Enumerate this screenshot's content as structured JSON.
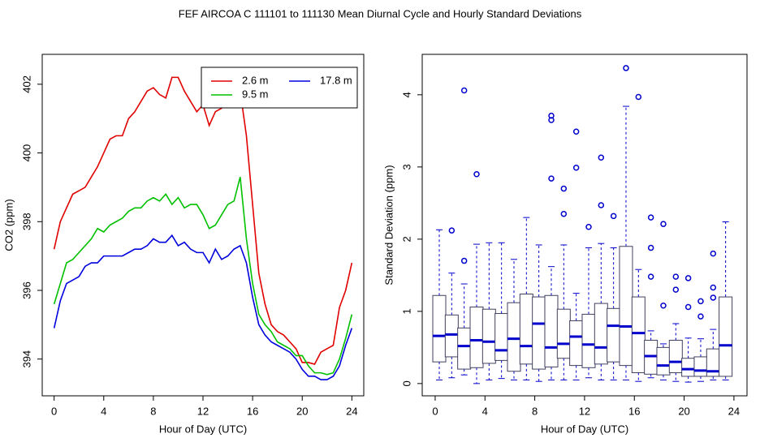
{
  "title": "FEF   AIRCOA C   111101 to 111130   Mean Diurnal Cycle and Hourly Standard Deviations",
  "chart_data": [
    {
      "type": "line",
      "xlabel": "Hour of Day (UTC)",
      "ylabel": "CO2 (ppm)",
      "xlim": [
        -0.96,
        24.96
      ],
      "ylim": [
        392.93,
        402.87
      ],
      "xticks": [
        0,
        4,
        8,
        12,
        16,
        20,
        24
      ],
      "yticks": [
        394,
        396,
        398,
        400,
        402
      ],
      "legend": "topright",
      "x": [
        0,
        0.5,
        1,
        1.5,
        2,
        2.5,
        3,
        3.5,
        4,
        4.5,
        5,
        5.5,
        6,
        6.5,
        7,
        7.5,
        8,
        8.5,
        9,
        9.5,
        10,
        10.5,
        11,
        11.5,
        12,
        12.5,
        13,
        13.5,
        14,
        14.5,
        15,
        15.5,
        16,
        16.5,
        17,
        17.5,
        18,
        18.5,
        19,
        19.5,
        20,
        20.5,
        21,
        21.5,
        22,
        22.5,
        23,
        23.5,
        24
      ],
      "series": [
        {
          "name": "2.6 m",
          "color": "#e00000",
          "values": [
            397.2,
            398.0,
            398.4,
            398.8,
            398.9,
            399.0,
            399.3,
            399.6,
            400.0,
            400.4,
            400.5,
            400.5,
            401.0,
            401.2,
            401.5,
            401.8,
            401.9,
            401.7,
            401.6,
            402.2,
            402.2,
            401.8,
            401.5,
            401.2,
            401.4,
            400.8,
            401.2,
            401.3,
            401.8,
            402.0,
            401.8,
            400.5,
            398.5,
            396.5,
            395.6,
            395.0,
            394.8,
            394.7,
            394.5,
            394.3,
            393.9,
            393.9,
            393.85,
            394.2,
            394.3,
            394.4,
            395.5,
            396.0,
            396.8
          ]
        },
        {
          "name": "9.5 m",
          "color": "#00c000",
          "values": [
            395.6,
            396.2,
            396.8,
            396.9,
            397.1,
            397.3,
            397.5,
            397.8,
            397.7,
            397.9,
            398.0,
            398.1,
            398.3,
            398.4,
            398.4,
            398.6,
            398.7,
            398.6,
            398.8,
            398.5,
            398.7,
            398.4,
            398.5,
            398.5,
            398.2,
            397.8,
            397.9,
            398.2,
            398.5,
            398.6,
            399.3,
            397.5,
            396.2,
            395.3,
            395.0,
            394.8,
            394.5,
            394.4,
            394.3,
            394.1,
            394.1,
            393.8,
            393.6,
            393.6,
            393.55,
            393.6,
            394.0,
            394.6,
            395.3
          ]
        },
        {
          "name": "17.8 m",
          "color": "#0000dd",
          "values": [
            394.9,
            395.7,
            396.2,
            396.3,
            396.4,
            396.7,
            396.8,
            396.8,
            397.0,
            397.0,
            397.0,
            397.0,
            397.1,
            397.2,
            397.2,
            397.3,
            397.5,
            397.4,
            397.4,
            397.6,
            397.3,
            397.4,
            397.2,
            397.1,
            397.1,
            396.8,
            397.2,
            396.9,
            397.0,
            397.2,
            397.3,
            396.8,
            395.8,
            395.0,
            394.7,
            394.5,
            394.4,
            394.3,
            394.2,
            394.0,
            393.7,
            393.5,
            393.5,
            393.4,
            393.4,
            393.5,
            393.8,
            394.4,
            394.9
          ]
        }
      ]
    },
    {
      "type": "box",
      "xlabel": "Hour of Day (UTC)",
      "ylabel": "Standard Deviation (ppm)",
      "xlim": [
        -1.04,
        25.05
      ],
      "ylim": [
        -0.17,
        4.56
      ],
      "xticks": [
        0,
        4,
        8,
        12,
        16,
        20,
        24
      ],
      "yticks": [
        0,
        1,
        2,
        3,
        4
      ],
      "color": "#0000cc",
      "box_color": "#404060",
      "boxes": [
        {
          "x": 0.33,
          "whislo": 0.05,
          "q1": 0.3,
          "med": 0.66,
          "q3": 1.22,
          "whishi": 2.13,
          "fliers": []
        },
        {
          "x": 1.33,
          "whislo": 0.08,
          "q1": 0.37,
          "med": 0.68,
          "q3": 0.95,
          "whishi": 1.53,
          "fliers": [
            2.12
          ]
        },
        {
          "x": 2.33,
          "whislo": 0.12,
          "q1": 0.2,
          "med": 0.52,
          "q3": 0.77,
          "whishi": 1.38,
          "fliers": [
            1.7,
            4.06
          ]
        },
        {
          "x": 3.33,
          "whislo": 0.0,
          "q1": 0.22,
          "med": 0.6,
          "q3": 1.06,
          "whishi": 1.93,
          "fliers": [
            2.9
          ]
        },
        {
          "x": 4.33,
          "whislo": 0.05,
          "q1": 0.28,
          "med": 0.58,
          "q3": 1.03,
          "whishi": 1.95,
          "fliers": []
        },
        {
          "x": 5.33,
          "whislo": 0.07,
          "q1": 0.32,
          "med": 0.46,
          "q3": 0.97,
          "whishi": 1.95,
          "fliers": []
        },
        {
          "x": 6.33,
          "whislo": 0.05,
          "q1": 0.17,
          "med": 0.62,
          "q3": 1.12,
          "whishi": 1.72,
          "fliers": []
        },
        {
          "x": 7.33,
          "whislo": 0.05,
          "q1": 0.27,
          "med": 0.52,
          "q3": 1.24,
          "whishi": 2.3,
          "fliers": []
        },
        {
          "x": 8.33,
          "whislo": 0.03,
          "q1": 0.2,
          "med": 0.83,
          "q3": 1.2,
          "whishi": 1.92,
          "fliers": []
        },
        {
          "x": 9.33,
          "whislo": 0.05,
          "q1": 0.23,
          "med": 0.5,
          "q3": 1.22,
          "whishi": 1.62,
          "fliers": [
            2.84,
            3.65,
            3.71
          ]
        },
        {
          "x": 10.33,
          "whislo": 0.05,
          "q1": 0.35,
          "med": 0.55,
          "q3": 1.03,
          "whishi": 1.92,
          "fliers": [
            2.35,
            2.7
          ]
        },
        {
          "x": 11.33,
          "whislo": 0.05,
          "q1": 0.25,
          "med": 0.65,
          "q3": 0.87,
          "whishi": 1.25,
          "fliers": [
            2.99,
            3.49
          ]
        },
        {
          "x": 12.33,
          "whislo": 0.08,
          "q1": 0.22,
          "med": 0.54,
          "q3": 0.96,
          "whishi": 1.88,
          "fliers": [
            2.17
          ]
        },
        {
          "x": 13.33,
          "whislo": 0.05,
          "q1": 0.27,
          "med": 0.5,
          "q3": 1.11,
          "whishi": 1.94,
          "fliers": [
            2.47,
            3.13
          ]
        },
        {
          "x": 14.33,
          "whislo": 0.05,
          "q1": 0.3,
          "med": 0.8,
          "q3": 1.04,
          "whishi": 1.88,
          "fliers": [
            2.32
          ]
        },
        {
          "x": 15.33,
          "whislo": 0.05,
          "q1": 0.25,
          "med": 0.79,
          "q3": 1.9,
          "whishi": 3.84,
          "fliers": [
            4.37
          ]
        },
        {
          "x": 16.33,
          "whislo": 0.03,
          "q1": 0.15,
          "med": 0.7,
          "q3": 1.2,
          "whishi": 1.58,
          "fliers": [
            3.97
          ]
        },
        {
          "x": 17.33,
          "whislo": 0.08,
          "q1": 0.13,
          "med": 0.38,
          "q3": 0.6,
          "whishi": 0.73,
          "fliers": [
            1.48,
            1.88,
            2.3
          ]
        },
        {
          "x": 18.33,
          "whislo": 0.05,
          "q1": 0.12,
          "med": 0.25,
          "q3": 0.5,
          "whishi": 0.55,
          "fliers": [
            1.08,
            2.21
          ]
        },
        {
          "x": 19.33,
          "whislo": 0.03,
          "q1": 0.15,
          "med": 0.3,
          "q3": 0.6,
          "whishi": 0.83,
          "fliers": [
            1.3,
            1.48
          ]
        },
        {
          "x": 20.33,
          "whislo": 0.02,
          "q1": 0.1,
          "med": 0.2,
          "q3": 0.35,
          "whishi": 0.63,
          "fliers": [
            1.06,
            1.46
          ]
        },
        {
          "x": 21.33,
          "whislo": 0.03,
          "q1": 0.1,
          "med": 0.18,
          "q3": 0.37,
          "whishi": 0.62,
          "fliers": [
            0.93,
            1.14
          ]
        },
        {
          "x": 22.33,
          "whislo": 0.05,
          "q1": 0.1,
          "med": 0.17,
          "q3": 0.48,
          "whishi": 0.75,
          "fliers": [
            1.19,
            1.33,
            1.8
          ]
        },
        {
          "x": 23.33,
          "whislo": 0.05,
          "q1": 0.1,
          "med": 0.53,
          "q3": 1.2,
          "whishi": 2.24,
          "fliers": []
        }
      ]
    }
  ]
}
